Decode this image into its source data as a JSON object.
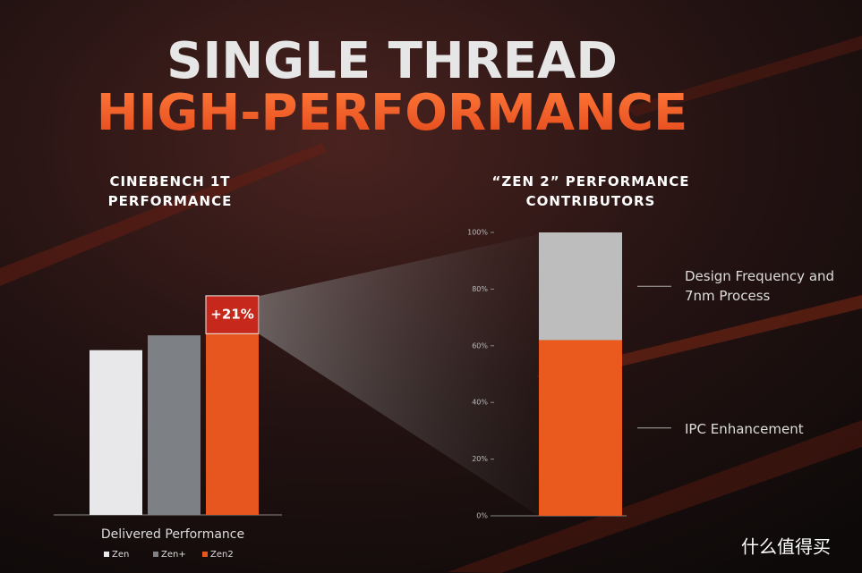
{
  "slide_title": {
    "line1": "SINGLE THREAD",
    "line2": "HIGH-PERFORMANCE"
  },
  "watermark": "什么值得买",
  "chart_data": [
    {
      "type": "bar",
      "title": "CINEBENCH 1T PERFORMANCE",
      "xlabel": "Delivered Performance",
      "categories": [
        "Zen",
        "Zen+",
        "Zen2"
      ],
      "values": [
        100,
        109,
        110
      ],
      "colors": [
        "#e8e8ea",
        "#7d8185",
        "#e8561f"
      ],
      "uplift": {
        "values": [
          null,
          null,
          23
        ],
        "color": "#c7281c"
      },
      "annotation": "+21%",
      "ylim": [
        0,
        140
      ]
    },
    {
      "type": "stacked_bar",
      "title": "“ZEN 2” PERFORMANCE CONTRIBUTORS",
      "series": [
        {
          "name": "IPC Enhancement",
          "color": "#ea5a1f",
          "values": [
            62
          ]
        },
        {
          "name": "Design Frequency and 7nm Process",
          "color": "#bdbdbd",
          "values": [
            38
          ]
        }
      ],
      "ylim": [
        0,
        100
      ],
      "yticks": [
        {
          "value": 0,
          "label": "0%"
        },
        {
          "value": 20,
          "label": "20%"
        },
        {
          "value": 40,
          "label": "40%"
        },
        {
          "value": 60,
          "label": "60%"
        },
        {
          "value": 80,
          "label": "80%"
        },
        {
          "value": 100,
          "label": "100%"
        }
      ]
    }
  ]
}
